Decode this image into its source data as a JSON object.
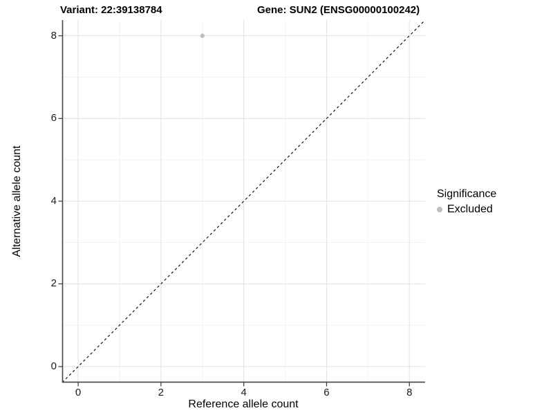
{
  "figure": {
    "title_left": "Variant: 22:39138784",
    "title_right": "Gene: SUN2 (ENSG00000100242)"
  },
  "chart_data": {
    "type": "scatter",
    "xlabel": "Reference allele count",
    "ylabel": "Alternative allele count",
    "x_ticks": [
      0,
      2,
      4,
      6,
      8
    ],
    "y_ticks": [
      0,
      2,
      4,
      6,
      8
    ],
    "x_minor": [
      1,
      3,
      5,
      7
    ],
    "y_minor": [
      1,
      3,
      5,
      7
    ],
    "xlim": [
      -0.385,
      8.38
    ],
    "ylim": [
      -0.385,
      8.38
    ],
    "grid": true,
    "points": [
      {
        "x": 3,
        "y": 8,
        "significance": "Excluded",
        "color": "#bebebe",
        "radius": 3.2
      }
    ],
    "identity_line": {
      "slope": 1,
      "intercept": 0,
      "style": "dashed",
      "color": "#000000"
    },
    "legend": {
      "title": "Significance",
      "position": "right",
      "entries": [
        {
          "label": "Excluded",
          "color": "#bebebe"
        }
      ]
    },
    "colors": {
      "grid_major": "#e2e2e2",
      "grid_minor": "#f1f1f1",
      "axis_line": "#4d4d4d",
      "tick_mark": "#333333"
    }
  }
}
